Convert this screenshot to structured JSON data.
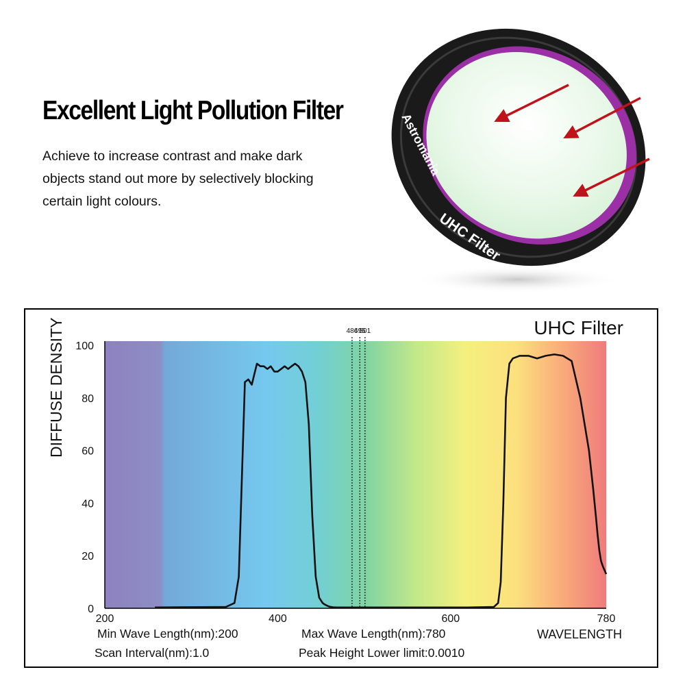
{
  "headline": "Excellent Light Pollution Filter",
  "description": "Achieve to increase contrast and make dark objects stand out more by selectively blocking certain light colours.",
  "product": {
    "brand_text": "Astromania",
    "ring_text": "UHC Filter",
    "arrow_color": "#c0121b",
    "rim_color": "#9b2fa6",
    "glass_color": "#e8f8e8"
  },
  "chart_data": {
    "type": "line",
    "title": "UHC Filter",
    "ylabel": "DIFFUSE DENSITY",
    "xlabel": "WAVELENGTH",
    "x_ticks": [
      "200",
      "400",
      "600",
      "780"
    ],
    "y_ticks": [
      "100",
      "80",
      "60",
      "40",
      "20",
      "0"
    ],
    "xlim": [
      200,
      780
    ],
    "ylim": [
      0,
      100
    ],
    "grid": false,
    "background": "visible spectrum gradient",
    "markers": [
      {
        "label": "486",
        "x": 486
      },
      {
        "label": "495",
        "x": 495
      },
      {
        "label": "501",
        "x": 501
      }
    ],
    "series": [
      {
        "x": [
          258,
          340,
          350,
          355,
          362,
          366,
          370,
          373,
          376,
          380,
          384,
          388,
          392,
          396,
          400,
          404,
          408,
          412,
          416,
          420,
          424,
          428,
          432,
          436,
          440,
          444,
          448,
          452,
          454,
          457,
          460,
          464,
          468,
          472,
          478,
          485,
          500,
          560,
          620,
          650,
          655,
          658,
          661,
          664,
          668,
          672,
          676,
          680,
          690,
          700,
          710,
          720,
          730,
          740,
          750,
          760,
          765,
          768,
          770,
          772,
          774,
          776,
          778,
          780
        ],
        "y": [
          0.3,
          0.5,
          2,
          12,
          86,
          87,
          85,
          89,
          93,
          92,
          92,
          91,
          92,
          90,
          90,
          91,
          92,
          91,
          92,
          93,
          92,
          90,
          86,
          70,
          35,
          12,
          4,
          2,
          1.5,
          1,
          0.6,
          0.4,
          0.3,
          0.3,
          0.3,
          0.3,
          0.3,
          0.3,
          0.3,
          0.5,
          2,
          10,
          40,
          80,
          93,
          95,
          95.5,
          96,
          96,
          95,
          96,
          96.5,
          96,
          94,
          80,
          60,
          45,
          35,
          28,
          22,
          18,
          16,
          14.5,
          13
        ]
      }
    ]
  },
  "info": {
    "min_wave": "Min Wave Length(nm):200",
    "max_wave": "Max Wave Length(nm):780",
    "scan_interval": "Scan Interval(nm):1.0",
    "peak_limit": "Peak Height Lower limit:0.0010"
  }
}
